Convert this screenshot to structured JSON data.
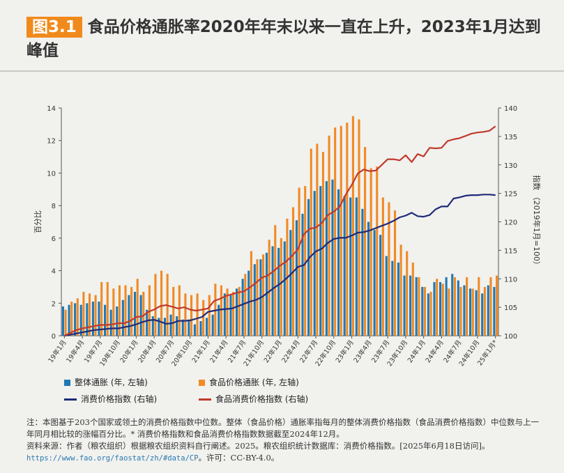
{
  "header": {
    "badge": "图3.1",
    "title": "食品价格通胀率2020年年末以来一直在上升，2023年1月达到峰值"
  },
  "legend": {
    "overall": "整体通胀 (年, 左轴)",
    "food": "食品价格通胀 (年, 左轴)",
    "cpi": "消费价格指数 (右轴)",
    "food_cpi": "食品消费价格指数 (右轴)"
  },
  "colors": {
    "overall": "#1f78b4",
    "food": "#f08a24",
    "cpi": "#1e2a78",
    "food_cpi": "#c0392b"
  },
  "chart_data": {
    "type": "bar+line",
    "left_axis": {
      "label": "百分比",
      "ylim": [
        0,
        14
      ],
      "ticks": [
        0,
        2,
        4,
        6,
        8,
        10,
        12,
        14
      ]
    },
    "right_axis": {
      "label": "指数 （2019年1月=100）",
      "ylim": [
        100,
        140
      ],
      "ticks": [
        100,
        105,
        110,
        115,
        120,
        125,
        130,
        135,
        140
      ]
    },
    "x_tick_labels": [
      "19年1月",
      "19年4月",
      "19年7月",
      "19年10月",
      "20年1月",
      "20年4月",
      "20年7月",
      "20年10月",
      "21年1月",
      "21年4月",
      "21年7月",
      "21年10月",
      "22年1月",
      "22年4月",
      "22年7月",
      "22年10月",
      "23年1月",
      "23年4月",
      "23年7月",
      "23年10月",
      "24年1月",
      "24年4月",
      "24年7月",
      "24年10月",
      "25年1月"
    ],
    "x_tick_suffix": "*",
    "series": [
      {
        "name": "整体通胀 (年, 左轴)",
        "type": "bar",
        "axis": "left",
        "values": [
          1.8,
          1.9,
          2.0,
          1.9,
          2.0,
          2.1,
          2.1,
          1.9,
          1.6,
          1.8,
          2.2,
          2.5,
          2.7,
          2.5,
          1.6,
          1.2,
          1.1,
          1.1,
          1.3,
          1.2,
          1.0,
          1.0,
          0.7,
          0.9,
          1.1,
          1.3,
          1.9,
          2.6,
          2.5,
          2.9,
          3.5,
          4.0,
          4.4,
          4.7,
          5.1,
          5.5,
          5.4,
          5.8,
          6.5,
          7.1,
          7.5,
          8.4,
          8.9,
          9.2,
          9.5,
          9.6,
          9.0,
          8.6,
          8.5,
          8.5,
          7.8,
          7.0,
          6.5,
          6.2,
          4.9,
          4.6,
          4.5,
          3.7,
          3.7,
          3.6,
          3.0,
          2.6,
          3.3,
          3.3,
          3.6,
          3.8,
          3.4,
          3.1,
          2.9,
          2.8,
          2.6,
          3.1,
          3.0
        ]
      },
      {
        "name": "食品价格通胀 (年, 左轴)",
        "type": "bar",
        "axis": "left",
        "values": [
          1.6,
          2.1,
          2.3,
          2.7,
          2.6,
          2.5,
          3.3,
          3.3,
          2.9,
          3.1,
          3.1,
          3.0,
          3.5,
          2.7,
          3.1,
          3.8,
          4.0,
          3.8,
          3.0,
          3.1,
          2.6,
          2.5,
          2.6,
          2.2,
          2.5,
          3.2,
          3.1,
          2.9,
          2.7,
          3.0,
          3.8,
          5.2,
          4.7,
          5.0,
          5.9,
          6.8,
          6.0,
          7.2,
          7.9,
          9.1,
          9.2,
          11.5,
          11.8,
          11.3,
          12.3,
          12.8,
          12.9,
          13.1,
          13.5,
          13.3,
          11.6,
          10.3,
          10.4,
          8.5,
          8.2,
          7.7,
          5.6,
          5.2,
          4.5,
          3.6,
          3.0,
          2.7,
          3.5,
          3.2,
          2.9,
          3.6,
          3.0,
          3.6,
          2.9,
          3.6,
          3.0,
          3.6,
          3.7
        ]
      },
      {
        "name": "消费价格指数 (右轴)",
        "type": "line",
        "axis": "right",
        "values": [
          100.0,
          100.2,
          100.4,
          100.6,
          100.8,
          101.0,
          101.1,
          101.2,
          101.3,
          101.3,
          101.5,
          101.7,
          102.0,
          102.4,
          102.7,
          102.8,
          102.5,
          102.1,
          102.2,
          102.6,
          102.6,
          102.7,
          103.0,
          103.3,
          104.2,
          104.4,
          104.6,
          104.7,
          104.8,
          105.2,
          105.6,
          106.0,
          106.3,
          106.8,
          107.6,
          108.4,
          109.1,
          110.0,
          111.0,
          112.1,
          112.4,
          113.8,
          114.8,
          115.3,
          116.3,
          117.0,
          117.2,
          117.2,
          117.6,
          118.1,
          118.2,
          118.5,
          118.9,
          119.3,
          119.7,
          120.2,
          120.8,
          121.1,
          121.6,
          121.0,
          120.9,
          121.2,
          122.2,
          122.7,
          122.7,
          124.1,
          124.3,
          124.6,
          124.7,
          124.7,
          124.8,
          124.8,
          124.7
        ]
      },
      {
        "name": "食品消费价格指数 (右轴)",
        "type": "line",
        "axis": "right",
        "values": [
          100.0,
          100.5,
          101.0,
          101.3,
          101.5,
          101.7,
          101.9,
          101.9,
          102.0,
          102.2,
          102.2,
          102.6,
          103.3,
          103.4,
          104.2,
          104.6,
          105.2,
          105.4,
          105.1,
          104.8,
          105.0,
          104.6,
          104.4,
          104.6,
          104.8,
          106.1,
          106.5,
          107.0,
          107.3,
          107.6,
          107.8,
          108.5,
          109.3,
          110.2,
          110.6,
          111.4,
          112.3,
          113.0,
          114.0,
          115.2,
          117.8,
          118.8,
          119.0,
          119.8,
          121.2,
          121.8,
          122.7,
          124.8,
          126.5,
          128.5,
          129.2,
          128.9,
          129.0,
          130.0,
          131.0,
          131.0,
          130.8,
          131.7,
          130.5,
          131.9,
          131.5,
          133.0,
          132.9,
          133.0,
          134.2,
          134.5,
          134.7,
          135.1,
          135.5,
          135.7,
          135.8,
          136.0,
          136.8
        ]
      }
    ]
  },
  "notes": {
    "line1": "注：本图基于203个国家或领土的消费价格指数中位数。整体（食品价格）通胀率指每月的整体消费价格指数（食品消费价格指数）中位数与上一年同月相比较的涨幅百分比。* 消费价格指数和食品消费价格指数数据截至2024年12月。",
    "line2": "资料来源：作者（粮农组织）根据粮农组织资料自行阐述。2025。粮农组织统计数据库：消费价格指数。[2025年6月18日访问]。",
    "link": "https://www.fao.org/faostat/zh/#data/CP",
    "line3": "。许可：CC-BY-4.0。"
  }
}
